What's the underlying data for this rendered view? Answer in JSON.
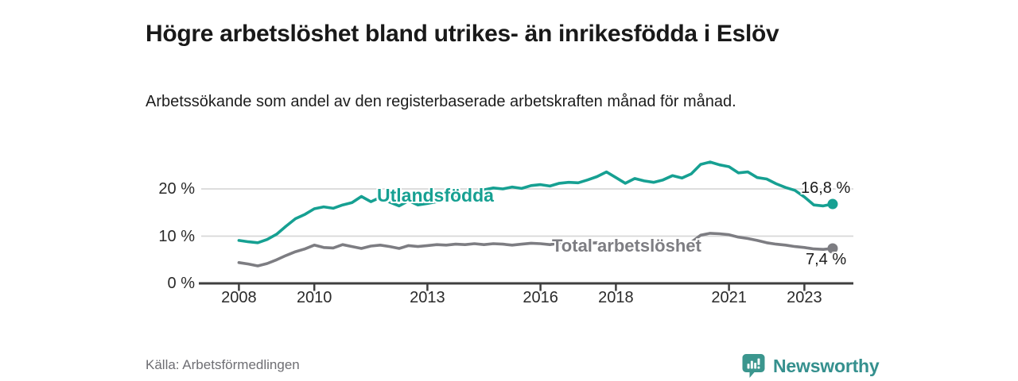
{
  "header": {
    "title": "Högre arbetslöshet bland utrikes- än inrikesfödda i Eslöv",
    "subtitle": "Arbetssökande som andel av den registerbaserade arbetskraften månad för månad."
  },
  "footer": {
    "source": "Källa: Arbetsförmedlingen",
    "brand_name": "Newsworthy",
    "brand_color": "#35908e",
    "logo_icon": "bar-chart-speech-bubble-icon",
    "logo_color": "#3b968e"
  },
  "chart_data": {
    "type": "line",
    "title": "Högre arbetslöshet bland utrikes- än inrikesfödda i Eslöv",
    "subtitle": "Arbetssökande som andel av den registerbaserade arbetskraften månad för månad.",
    "x_unit": "year (monthly series shown quarterly-sampled)",
    "ylim": [
      0,
      28
    ],
    "xlim": [
      2007,
      2024.3
    ],
    "grid": "horizontal",
    "legend": "inline-labels",
    "axis_color": "#3f3f3f",
    "grid_color": "#d8d8d8",
    "tick_text_color": "#2a2a2a",
    "y_ticks": [
      {
        "value": 20,
        "label": "20 %"
      },
      {
        "value": 10,
        "label": "10 %"
      },
      {
        "value": 0,
        "label": "0 %"
      }
    ],
    "x_ticks": [
      {
        "year": 2008,
        "label": "2008"
      },
      {
        "year": 2010,
        "label": "2010"
      },
      {
        "year": 2013,
        "label": "2013"
      },
      {
        "year": 2016,
        "label": "2016"
      },
      {
        "year": 2018,
        "label": "2018"
      },
      {
        "year": 2021,
        "label": "2021"
      },
      {
        "year": 2023,
        "label": "2023"
      }
    ],
    "x": [
      2008,
      2008.25,
      2008.5,
      2008.75,
      2009,
      2009.25,
      2009.5,
      2009.75,
      2010,
      2010.25,
      2010.5,
      2010.75,
      2011,
      2011.25,
      2011.5,
      2011.75,
      2012,
      2012.25,
      2012.5,
      2012.75,
      2013,
      2013.25,
      2013.5,
      2013.75,
      2014,
      2014.25,
      2014.5,
      2014.75,
      2015,
      2015.25,
      2015.5,
      2015.75,
      2016,
      2016.25,
      2016.5,
      2016.75,
      2017,
      2017.25,
      2017.5,
      2017.75,
      2018,
      2018.25,
      2018.5,
      2018.75,
      2019,
      2019.25,
      2019.5,
      2019.75,
      2020,
      2020.25,
      2020.5,
      2020.75,
      2021,
      2021.25,
      2021.5,
      2021.75,
      2022,
      2022.25,
      2022.5,
      2022.75,
      2023,
      2023.25,
      2023.5,
      2023.75
    ],
    "series": [
      {
        "name": "Utlandsfödda",
        "color": "#16a092",
        "end_label": "16,8 %",
        "end_value": 16.8,
        "values": [
          9.1,
          8.8,
          8.6,
          9.3,
          10.4,
          12.1,
          13.7,
          14.6,
          15.8,
          16.2,
          15.9,
          16.6,
          17.1,
          18.4,
          17.3,
          18.2,
          17.2,
          16.4,
          17.5,
          16.6,
          16.9,
          17.3,
          17.8,
          18.3,
          18.8,
          19.3,
          19.8,
          20.2,
          20.0,
          20.4,
          20.1,
          20.7,
          20.9,
          20.6,
          21.2,
          21.4,
          21.3,
          21.9,
          22.6,
          23.6,
          22.4,
          21.2,
          22.2,
          21.7,
          21.4,
          21.9,
          22.8,
          22.3,
          23.2,
          25.2,
          25.7,
          25.1,
          24.7,
          23.4,
          23.6,
          22.4,
          22.1,
          21.1,
          20.3,
          19.7,
          18.3,
          16.6,
          16.4,
          16.8
        ]
      },
      {
        "name": "Total arbetslöshet",
        "color": "#7d7d82",
        "end_label": "7,4 %",
        "end_value": 7.4,
        "values": [
          4.4,
          4.1,
          3.7,
          4.2,
          5.0,
          5.9,
          6.7,
          7.3,
          8.1,
          7.6,
          7.5,
          8.2,
          7.8,
          7.4,
          7.9,
          8.1,
          7.8,
          7.4,
          8.0,
          7.8,
          8.0,
          8.2,
          8.1,
          8.3,
          8.2,
          8.4,
          8.2,
          8.4,
          8.3,
          8.1,
          8.3,
          8.5,
          8.4,
          8.2,
          8.5,
          8.4,
          8.3,
          8.5,
          8.6,
          8.5,
          8.3,
          8.2,
          8.4,
          8.3,
          8.2,
          8.4,
          8.5,
          8.4,
          8.7,
          10.2,
          10.6,
          10.5,
          10.3,
          9.8,
          9.5,
          9.1,
          8.6,
          8.3,
          8.1,
          7.8,
          7.6,
          7.3,
          7.2,
          7.4
        ]
      }
    ]
  }
}
